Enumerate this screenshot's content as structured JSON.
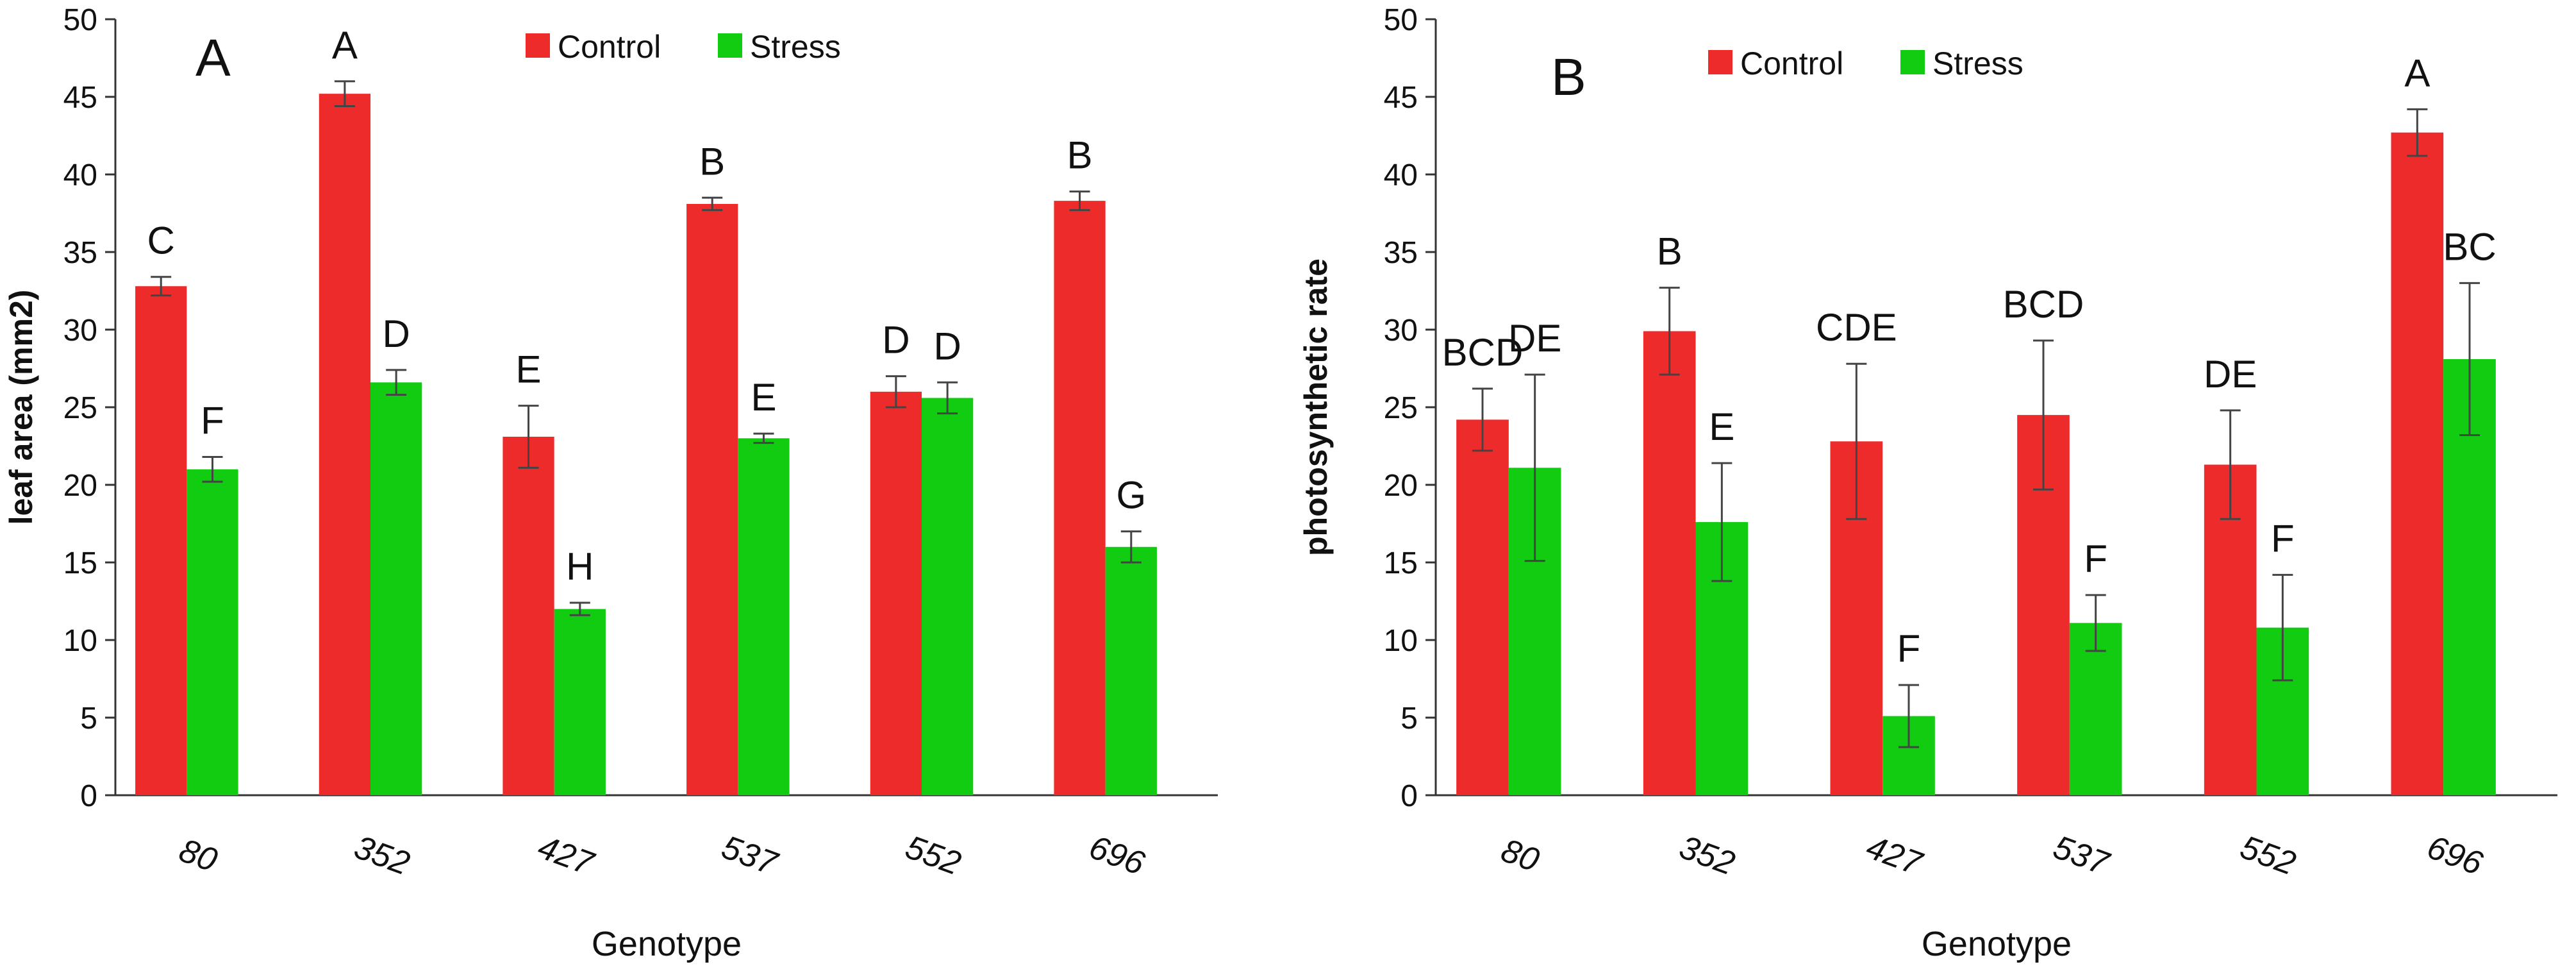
{
  "colors": {
    "control": "#ee2b2b",
    "stress": "#11cc11",
    "axis": "#333333",
    "error": "#444444"
  },
  "chart_data": [
    {
      "type": "bar",
      "panel": "A",
      "legend": [
        "Control",
        "Stress"
      ],
      "legend_position": "top",
      "categories": [
        "80",
        "352",
        "427",
        "537",
        "552",
        "696"
      ],
      "series": [
        {
          "name": "Control",
          "values": [
            32.8,
            45.2,
            23.1,
            38.1,
            26.0,
            38.3
          ],
          "errors": [
            0.6,
            0.8,
            2.0,
            0.4,
            1.0,
            0.6
          ],
          "letters": [
            "C",
            "A",
            "E",
            "B",
            "D",
            "B"
          ]
        },
        {
          "name": "Stress",
          "values": [
            21.0,
            26.6,
            12.0,
            23.0,
            25.6,
            16.0
          ],
          "errors": [
            0.8,
            0.8,
            0.4,
            0.3,
            1.0,
            1.0
          ],
          "letters": [
            "F",
            "D",
            "H",
            "E",
            "D",
            "G"
          ]
        }
      ],
      "ylim": [
        0,
        50
      ],
      "yticks": [
        "0",
        "5",
        "10",
        "15",
        "20",
        "25",
        "30",
        "35",
        "40",
        "45",
        "50"
      ],
      "xlabel": "Genotype",
      "ylabel": "leaf area (mm2)"
    },
    {
      "type": "bar",
      "panel": "B",
      "legend": [
        "Control",
        "Stress"
      ],
      "legend_position": "top",
      "categories": [
        "80",
        "352",
        "427",
        "537",
        "552",
        "696"
      ],
      "series": [
        {
          "name": "Control",
          "values": [
            24.2,
            29.9,
            22.8,
            24.5,
            21.3,
            42.7
          ],
          "errors": [
            2.0,
            2.8,
            5.0,
            4.8,
            3.5,
            1.5
          ],
          "letters": [
            "BCD",
            "B",
            "CDE",
            "BCD",
            "DE",
            "A"
          ]
        },
        {
          "name": "Stress",
          "values": [
            21.1,
            17.6,
            5.1,
            11.1,
            10.8,
            28.1
          ],
          "errors": [
            6.0,
            3.8,
            2.0,
            1.8,
            3.4,
            4.9
          ],
          "letters": [
            "DE",
            "E",
            "F",
            "F",
            "F",
            "BC"
          ]
        }
      ],
      "ylim": [
        0,
        50
      ],
      "yticks": [
        "0",
        "5",
        "10",
        "15",
        "20",
        "25",
        "30",
        "35",
        "40",
        "45",
        "50"
      ],
      "xlabel": "Genotype",
      "ylabel": "photosynthetic rate"
    }
  ]
}
